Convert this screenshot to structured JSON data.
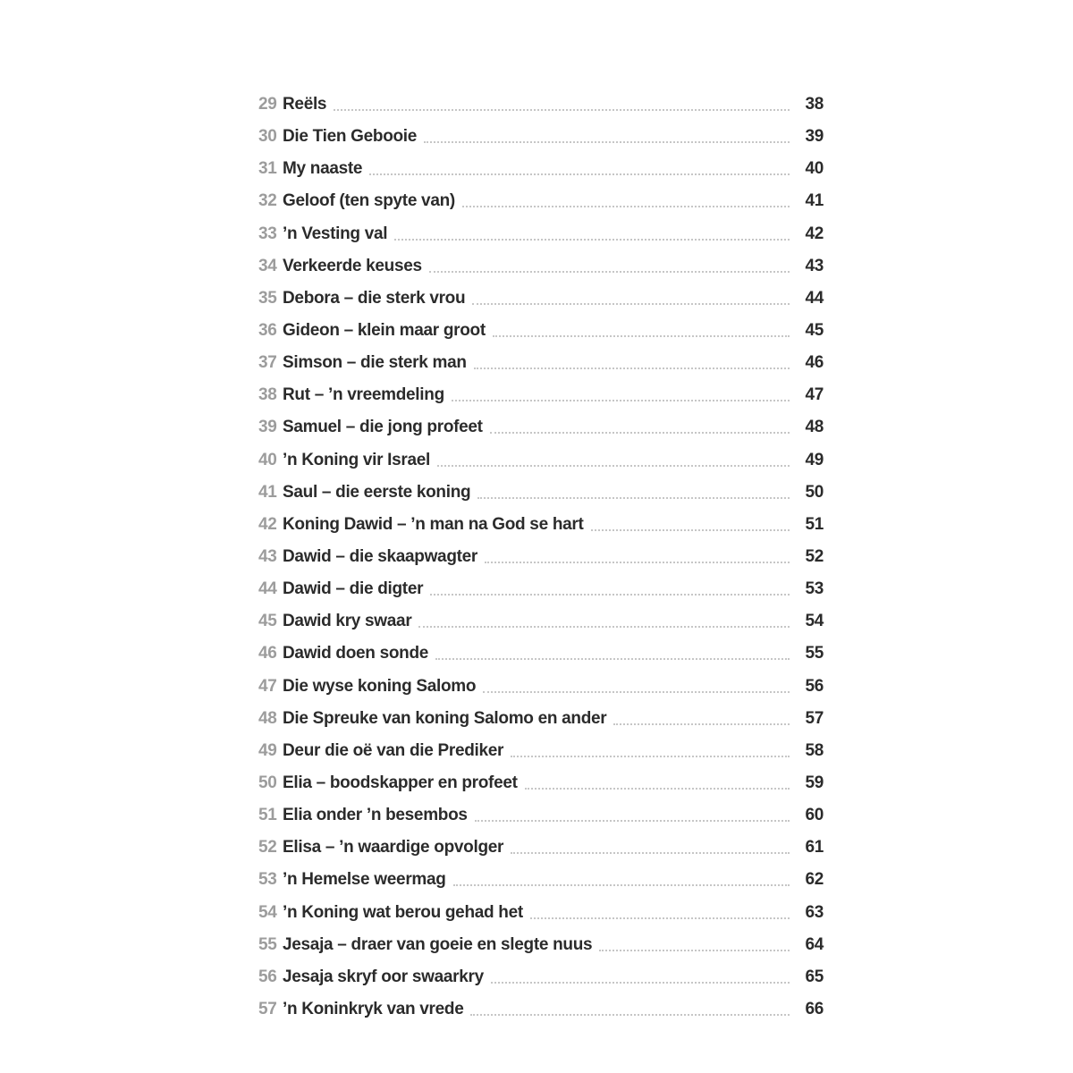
{
  "colors": {
    "background": "#ffffff",
    "title_text": "#2b2b2b",
    "number_text": "#9c9c9c",
    "leader_dots": "#c6c6c6"
  },
  "toc": {
    "entries": [
      {
        "num": "29",
        "title": "Reëls",
        "page": "38"
      },
      {
        "num": "30",
        "title": "Die Tien Gebooie",
        "page": "39"
      },
      {
        "num": "31",
        "title": "My naaste",
        "page": "40"
      },
      {
        "num": "32",
        "title": "Geloof (ten spyte van)",
        "page": "41"
      },
      {
        "num": "33",
        "title": "’n Vesting val",
        "page": "42"
      },
      {
        "num": "34",
        "title": "Verkeerde keuses",
        "page": "43"
      },
      {
        "num": "35",
        "title": "Debora – die sterk vrou",
        "page": "44"
      },
      {
        "num": "36",
        "title": "Gideon – klein maar groot",
        "page": "45"
      },
      {
        "num": "37",
        "title": "Simson – die sterk man",
        "page": "46"
      },
      {
        "num": "38",
        "title": "Rut – ’n vreemdeling",
        "page": "47"
      },
      {
        "num": "39",
        "title": "Samuel – die jong profeet",
        "page": "48"
      },
      {
        "num": "40",
        "title": "’n Koning vir Israel",
        "page": "49"
      },
      {
        "num": "41",
        "title": "Saul – die eerste koning",
        "page": "50"
      },
      {
        "num": "42",
        "title": "Koning Dawid – ’n man na God se hart",
        "page": "51"
      },
      {
        "num": "43",
        "title": "Dawid – die skaapwagter",
        "page": "52"
      },
      {
        "num": "44",
        "title": "Dawid – die digter",
        "page": "53"
      },
      {
        "num": "45",
        "title": "Dawid kry swaar",
        "page": "54"
      },
      {
        "num": "46",
        "title": "Dawid doen sonde",
        "page": "55"
      },
      {
        "num": "47",
        "title": "Die wyse koning Salomo",
        "page": "56"
      },
      {
        "num": "48",
        "title": "Die Spreuke van koning Salomo en ander",
        "page": "57"
      },
      {
        "num": "49",
        "title": "Deur die oë van die Prediker",
        "page": "58"
      },
      {
        "num": "50",
        "title": "Elia – boodskapper en profeet",
        "page": "59"
      },
      {
        "num": "51",
        "title": "Elia onder ’n besembos",
        "page": "60"
      },
      {
        "num": "52",
        "title": "Elisa – ’n waardige opvolger",
        "page": "61"
      },
      {
        "num": "53",
        "title": "’n Hemelse weermag",
        "page": "62"
      },
      {
        "num": "54",
        "title": "’n Koning wat berou gehad het",
        "page": "63"
      },
      {
        "num": "55",
        "title": "Jesaja – draer van goeie en slegte nuus",
        "page": "64"
      },
      {
        "num": "56",
        "title": "Jesaja skryf oor swaarkry",
        "page": "65"
      },
      {
        "num": "57",
        "title": "’n Koninkryk van vrede",
        "page": "66"
      }
    ]
  }
}
